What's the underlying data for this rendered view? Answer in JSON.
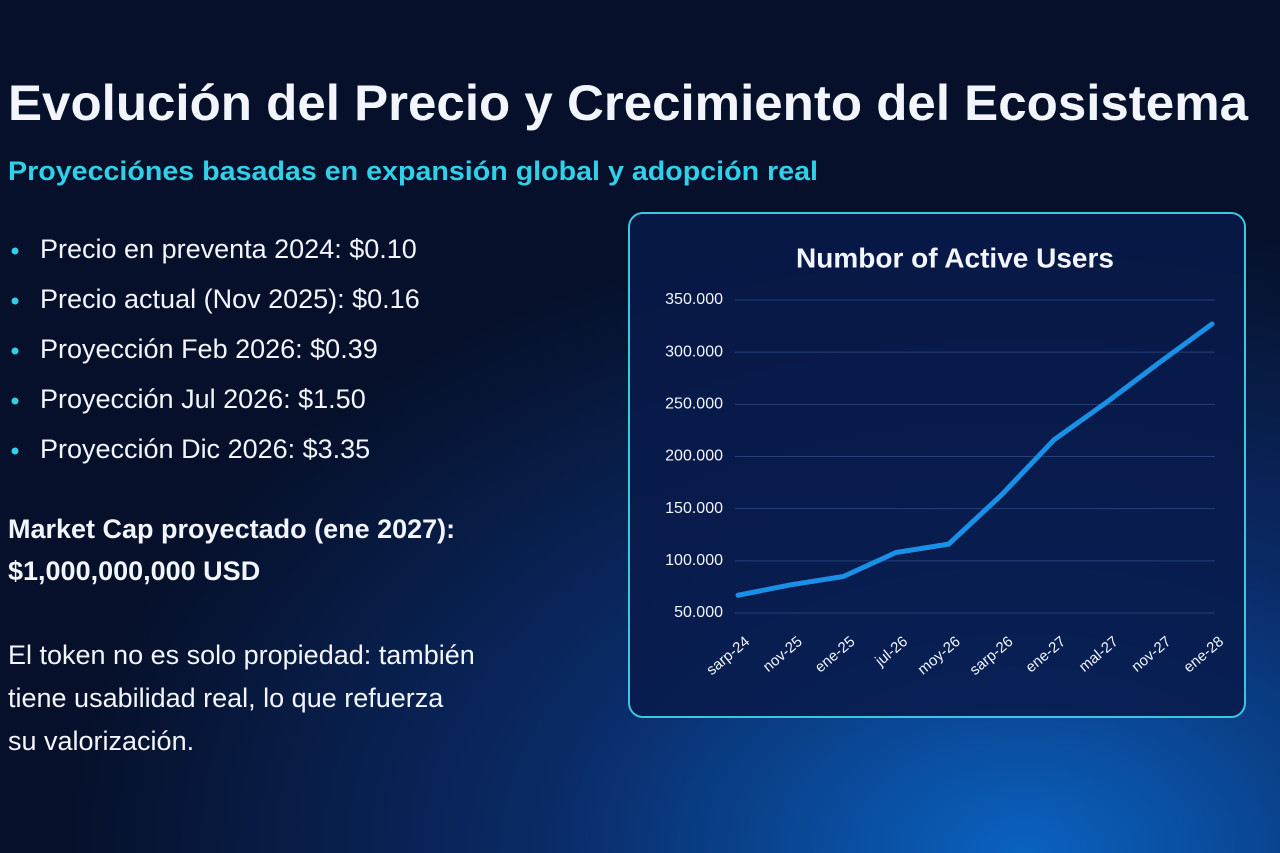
{
  "header": {
    "title": "Evolución del Precio y Crecimiento del Ecosistema",
    "subtitle": "Proyecciónes basadas en expansión global y adopción real"
  },
  "bullets": [
    "Precio en preventa 2024: $0.10",
    "Precio actual (Nov 2025): $0.16",
    "Proyección Feb 2026: $0.39",
    "Proyección Jul 2026: $1.50",
    "Proyección Dic 2026: $3.35"
  ],
  "market_cap": [
    "Market Cap proyectado (ene 2027):",
    "$1,000,000,000 USD"
  ],
  "paragraph": [
    "El token no es solo propiedad: también",
    "tiene usabilidad real, lo que refuerza",
    "su valorización."
  ],
  "chart_data": {
    "type": "line",
    "title": "Numbor of Active Users",
    "categories": [
      "sarp-24",
      "nov-25",
      "ene-25",
      "jul-26",
      "moy-26",
      "sarp-26",
      "ene-27",
      "mal-27",
      "nov-27",
      "ene-28"
    ],
    "values": [
      67000,
      77000,
      85000,
      108000,
      116000,
      163000,
      216000,
      252000,
      290000,
      327000
    ],
    "color": "#1a8fe6",
    "ylim": [
      50000,
      350000
    ],
    "yticks": [
      {
        "value": 50000,
        "label": "50.000"
      },
      {
        "value": 100000,
        "label": "100.000"
      },
      {
        "value": 150000,
        "label": "150.000"
      },
      {
        "value": 200000,
        "label": "200.000"
      },
      {
        "value": 250000,
        "label": "250.000"
      },
      {
        "value": 300000,
        "label": "300.000"
      },
      {
        "value": 350000,
        "label": "350.000"
      }
    ],
    "grid": true
  }
}
